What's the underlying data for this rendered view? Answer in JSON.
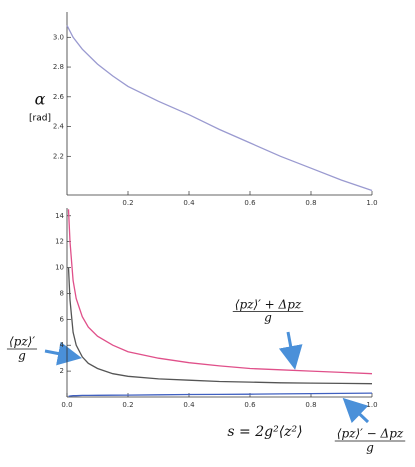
{
  "chart_data": [
    {
      "type": "line",
      "y_label": "α",
      "y_unit": "[rad]",
      "x": [
        0,
        0.02,
        0.05,
        0.1,
        0.15,
        0.2,
        0.3,
        0.4,
        0.5,
        0.6,
        0.7,
        0.8,
        0.9,
        1.0
      ],
      "series": [
        {
          "color": "#9a9ad0",
          "values": [
            3.08,
            3.0,
            2.92,
            2.82,
            2.74,
            2.67,
            2.57,
            2.48,
            2.38,
            2.29,
            2.2,
            2.12,
            2.04,
            1.97
          ]
        }
      ],
      "xlim": [
        0,
        1
      ],
      "ylim": [
        1.94,
        3.17
      ],
      "xticks": [
        0.2,
        0.4,
        0.6,
        0.8,
        {
          "value": 1,
          "label": "1.0"
        }
      ],
      "yticks": [
        2.2,
        2.4,
        2.6,
        2.8,
        {
          "value": 3,
          "label": "3.0"
        }
      ]
    },
    {
      "type": "line",
      "x_label": "s = 2g²⟨z²⟩",
      "x": [
        0.005,
        0.01,
        0.02,
        0.03,
        0.05,
        0.07,
        0.1,
        0.15,
        0.2,
        0.3,
        0.4,
        0.5,
        0.6,
        0.7,
        0.8,
        0.9,
        1.0
      ],
      "series": [
        {
          "color": "#e0508a",
          "values": [
            14.5,
            12,
            9,
            7.6,
            6.2,
            5.4,
            4.7,
            4,
            3.5,
            3,
            2.65,
            2.4,
            2.2,
            2.1,
            2,
            1.9,
            1.8
          ]
        },
        {
          "color": "#555555",
          "values": [
            10,
            7.5,
            5,
            4,
            3.1,
            2.6,
            2.2,
            1.8,
            1.6,
            1.4,
            1.3,
            1.2,
            1.15,
            1.1,
            1.07,
            1.05,
            1.03
          ]
        },
        {
          "color": "#4060c0",
          "values": [
            0.05,
            0.08,
            0.1,
            0.1,
            0.12,
            0.12,
            0.13,
            0.14,
            0.15,
            0.17,
            0.19,
            0.2,
            0.22,
            0.24,
            0.26,
            0.28,
            0.3
          ]
        }
      ],
      "annotations": [
        {
          "numerator": "⟨pz⟩′ + Δpz",
          "denominator": "g"
        },
        {
          "numerator": "⟨pz⟩′",
          "denominator": "g"
        },
        {
          "numerator": "⟨pz⟩′ − Δpz",
          "denominator": "g"
        }
      ],
      "xlim": [
        0,
        1
      ],
      "ylim": [
        0,
        14.6
      ],
      "xticks": [
        {
          "value": 0,
          "label": "0.0"
        },
        0.2,
        0.4,
        0.6,
        0.8,
        {
          "value": 1,
          "label": "1.0"
        }
      ],
      "yticks": [
        2,
        4,
        6,
        8,
        10,
        12,
        14
      ]
    }
  ]
}
